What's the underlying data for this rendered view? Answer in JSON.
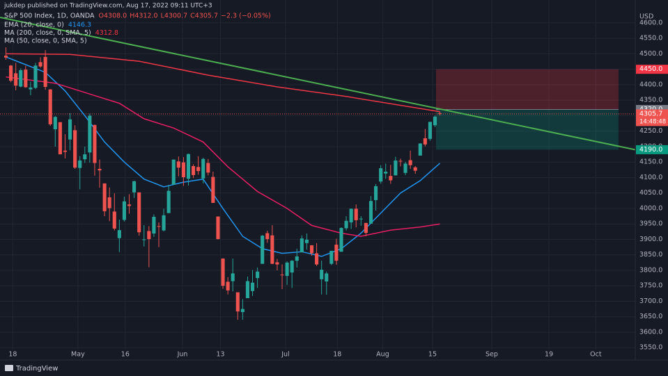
{
  "header": {
    "published": "jukdep published on TradingView.com, Aug 17, 2022 09:11 UTC+3",
    "symbol": "S&P 500 Index, 1D, OANDA",
    "open": "O4308.0",
    "high": "H4312.0",
    "low": "L4300.7",
    "close": "C4305.7",
    "change": "−2.3 (−0.05%)",
    "currency": "USD",
    "countdown": "14:48:48"
  },
  "footer": {
    "brand": "TradingView"
  },
  "chart_data": {
    "type": "candlestick",
    "up_color": "#26a69a",
    "down_color": "#ef5350",
    "open": [
      4494,
      4462,
      4437,
      4394,
      4449,
      4385,
      4390,
      4473,
      4490,
      4385,
      4256,
      4279,
      4187,
      4223,
      4253,
      4131,
      4159,
      4181,
      4270,
      4128,
      4081,
      4036,
      3990,
      3904,
      3963,
      4013,
      4052,
      4052,
      3900,
      3927,
      3919,
      3943,
      3929,
      3985,
      4077,
      4152,
      4149,
      4096,
      4137,
      4134,
      4097,
      4147,
      4102,
      3974,
      3838,
      3763,
      3765,
      3729,
      3665,
      3710,
      3733,
      3775,
      3821,
      3920,
      3913,
      3826,
      3786,
      3782,
      3793,
      3831,
      3858,
      3888,
      3881,
      3855,
      3771,
      3764,
      3821,
      3883,
      3860,
      3936,
      3955,
      3999,
      3965,
      3953,
      3951,
      4027,
      4087,
      4113,
      4105,
      4107,
      4154,
      4115,
      4156,
      4133,
      4171,
      4227,
      4225,
      4269,
      4308
    ],
    "high": [
      4521,
      4464,
      4471,
      4453,
      4461,
      4410,
      4471,
      4489,
      4512,
      4386,
      4299,
      4279,
      4240,
      4308,
      4269,
      4169,
      4200,
      4307,
      4271,
      4158,
      4081,
      4068,
      4049,
      3964,
      4038,
      4046,
      4090,
      4052,
      3946,
      3943,
      3981,
      3955,
      3999,
      4076,
      4158,
      4168,
      4166,
      4177,
      4143,
      4169,
      4164,
      4160,
      4119,
      3974,
      3839,
      3778,
      3838,
      3729,
      3707,
      3780,
      3801,
      3809,
      3914,
      3928,
      3946,
      3837,
      3819,
      3829,
      3833,
      3870,
      3913,
      3919,
      3881,
      3888,
      3831,
      3796,
      3863,
      3902,
      3939,
      3975,
      4000,
      4013,
      3975,
      3954,
      4040,
      4079,
      4140,
      4145,
      4141,
      4167,
      4161,
      4151,
      4187,
      4137,
      4211,
      4257,
      4280,
      4301,
      4312
    ],
    "low": [
      4481,
      4408,
      4382,
      4392,
      4390,
      4366,
      4386,
      4455,
      4384,
      4267,
      4200,
      4175,
      4162,
      4188,
      4128,
      4062,
      4147,
      4148,
      4106,
      4067,
      3975,
      3959,
      3929,
      3859,
      3958,
      3983,
      4034,
      3912,
      3877,
      3810,
      3908,
      3875,
      3926,
      3985,
      4077,
      4104,
      4073,
      4074,
      4098,
      4109,
      4081,
      4107,
      4018,
      3900,
      3740,
      3722,
      3732,
      3640,
      3640,
      3710,
      3717,
      3743,
      3821,
      3889,
      3820,
      3800,
      3739,
      3753,
      3743,
      3809,
      3858,
      3867,
      3847,
      3814,
      3722,
      3721,
      3817,
      3818,
      3860,
      3929,
      3934,
      3939,
      3944,
      3910,
      3951,
      3993,
      4080,
      4096,
      4080,
      4107,
      4136,
      4108,
      4128,
      4112,
      4171,
      4201,
      4219,
      4263,
      4300.7
    ],
    "close": [
      4488,
      4413,
      4397,
      4447,
      4392,
      4391,
      4462,
      4459,
      4393,
      4272,
      4296,
      4175,
      4183,
      4288,
      4132,
      4155,
      4175,
      4300,
      4147,
      4123,
      3991,
      4001,
      3935,
      3930,
      4023,
      4008,
      4088,
      3923,
      3900,
      3901,
      3973,
      3941,
      3978,
      4057,
      4158,
      4132,
      4101,
      4176,
      4108,
      4121,
      4160,
      4116,
      4018,
      3901,
      3750,
      3735,
      3790,
      3667,
      3675,
      3765,
      3760,
      3796,
      3912,
      3901,
      3821,
      3819,
      3785,
      3825,
      3831,
      3845,
      3903,
      3899,
      3855,
      3819,
      3802,
      3790,
      3863,
      3831,
      3937,
      3960,
      3999,
      3962,
      3967,
      3921,
      4024,
      4072,
      4130,
      4119,
      4091,
      4155,
      4152,
      4145,
      4140,
      4122,
      4210,
      4207,
      4280,
      4297,
      4305.7
    ],
    "series": [
      {
        "name": "EMA (20, close, 0)",
        "color": "#2196f3",
        "x": [
          0,
          4,
          8,
          12,
          16,
          20,
          24,
          28,
          32,
          36,
          40,
          44,
          48,
          52,
          56,
          60,
          64,
          68,
          72,
          76,
          80,
          84,
          88
        ],
        "values": [
          4490,
          4465,
          4440,
          4380,
          4300,
          4215,
          4150,
          4095,
          4070,
          4085,
          4095,
          4000,
          3910,
          3870,
          3855,
          3860,
          3845,
          3870,
          3920,
          3985,
          4050,
          4090,
          4146.3
        ]
      },
      {
        "name": "MA (200, close, 0, SMA, 5)",
        "color": "#f23645",
        "x": [
          0,
          13,
          27,
          41,
          55,
          69,
          88
        ],
        "values": [
          4500,
          4498,
          4476,
          4431,
          4393,
          4362,
          4312.8
        ]
      },
      {
        "name": "MA (50, close, 0, SMA, 5)",
        "color": "#e91e63",
        "x": [
          0,
          10,
          17,
          23,
          28,
          34,
          40,
          45,
          51,
          57,
          62,
          68,
          72,
          78,
          84,
          88
        ],
        "values": [
          4425,
          4405,
          4370,
          4340,
          4290,
          4260,
          4215,
          4135,
          4055,
          4000,
          3945,
          3920,
          3910,
          3930,
          3940,
          3950
        ]
      }
    ],
    "trendline": {
      "color": "#4caf50",
      "x": [
        -1.2,
        127.6
      ],
      "values": [
        4618,
        4190
      ]
    },
    "position": {
      "x": [
        87.2,
        124.2
      ],
      "entry": {
        "value": 4320,
        "label": "4320.0"
      },
      "stop": {
        "value": 4450,
        "label": "4450.0"
      },
      "target": {
        "value": 4190,
        "label": "4190.0"
      }
    },
    "xlim": [
      -1.2,
      127.6
    ],
    "xticks": [
      {
        "value": 1.4,
        "label": "18"
      },
      {
        "value": 14.6,
        "label": "May"
      },
      {
        "value": 24.2,
        "label": "16"
      },
      {
        "value": 35.8,
        "label": "Jun"
      },
      {
        "value": 43.5,
        "label": "13"
      },
      {
        "value": 56.7,
        "label": "Jul"
      },
      {
        "value": 67.2,
        "label": "18"
      },
      {
        "value": 76.4,
        "label": "Aug"
      },
      {
        "value": 86.5,
        "label": "15"
      },
      {
        "value": 98.5,
        "label": "Sep"
      },
      {
        "value": 110.1,
        "label": "19"
      },
      {
        "value": 119.6,
        "label": "Oct"
      }
    ],
    "ylim": [
      3510,
      4674
    ],
    "yticks": [
      {
        "value": 3550,
        "label": "3550.0"
      },
      {
        "value": 3600,
        "label": "3600.0"
      },
      {
        "value": 3650,
        "label": "3650.0"
      },
      {
        "value": 3700,
        "label": "3700.0"
      },
      {
        "value": 3750,
        "label": "3750.0"
      },
      {
        "value": 3800,
        "label": "3800.0"
      },
      {
        "value": 3850,
        "label": "3850.0"
      },
      {
        "value": 3900,
        "label": "3900.0"
      },
      {
        "value": 3950,
        "label": "3950.0"
      },
      {
        "value": 4000,
        "label": "4000.0"
      },
      {
        "value": 4050,
        "label": "4050.0"
      },
      {
        "value": 4100,
        "label": "4100.0"
      },
      {
        "value": 4150,
        "label": "4150.0"
      },
      {
        "value": 4200,
        "label": "4200.0"
      },
      {
        "value": 4250,
        "label": "4250.0"
      },
      {
        "value": 4300,
        "label": "4300.0"
      },
      {
        "value": 4350,
        "label": "4350.0"
      },
      {
        "value": 4400,
        "label": "4400.0"
      },
      {
        "value": 4450,
        "label": "4450.0"
      },
      {
        "value": 4500,
        "label": "4500.0"
      },
      {
        "value": 4550,
        "label": "4550.0"
      },
      {
        "value": 4600,
        "label": "4600.0"
      }
    ],
    "grid": true
  }
}
